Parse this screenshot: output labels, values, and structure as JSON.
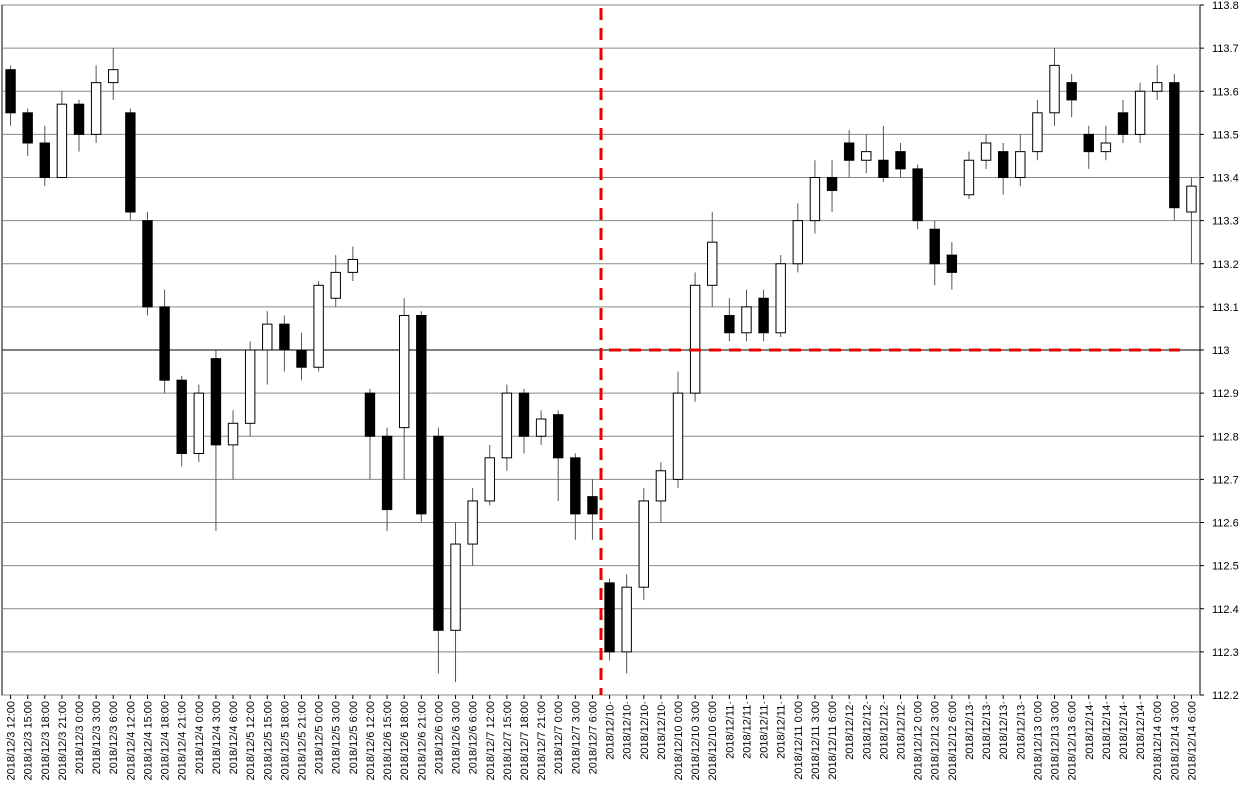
{
  "chart_data": {
    "type": "candlestick",
    "categories": [
      "2018/12/3 12:00",
      "2018/12/3 15:00",
      "2018/12/3 18:00",
      "2018/12/3 21:00",
      "2018/12/3 0:00",
      "2018/12/3 3:00",
      "2018/12/3 6:00",
      "2018/12/4 12:00",
      "2018/12/4 15:00",
      "2018/12/4 18:00",
      "2018/12/4 21:00",
      "2018/12/4 0:00",
      "2018/12/4 3:00",
      "2018/12/4 6:00",
      "2018/12/5 12:00",
      "2018/12/5 15:00",
      "2018/12/5 18:00",
      "2018/12/5 21:00",
      "2018/12/5 0:00",
      "2018/12/5 3:00",
      "2018/12/5 6:00",
      "2018/12/6 12:00",
      "2018/12/6 15:00",
      "2018/12/6 18:00",
      "2018/12/6 21:00",
      "2018/12/6 0:00",
      "2018/12/6 3:00",
      "2018/12/6 6:00",
      "2018/12/7 12:00",
      "2018/12/7 15:00",
      "2018/12/7 18:00",
      "2018/12/7 21:00",
      "2018/12/7 0:00",
      "2018/12/7 3:00",
      "2018/12/7 6:00",
      "2018/12/10·",
      "2018/12/10·",
      "2018/12/10·",
      "2018/12/10·",
      "2018/12/10 0:00",
      "2018/12/10 3:00",
      "2018/12/10 6:00",
      "2018/12/11·",
      "2018/12/11·",
      "2018/12/11·",
      "2018/12/11·",
      "2018/12/11 0:00",
      "2018/12/11 3:00",
      "2018/12/11 6:00",
      "2018/12/12·",
      "2018/12/12·",
      "2018/12/12·",
      "2018/12/12·",
      "2018/12/12 0:00",
      "2018/12/12 3:00",
      "2018/12/12 6:00",
      "2018/12/13·",
      "2018/12/13·",
      "2018/12/13·",
      "2018/12/13·",
      "2018/12/13 0:00",
      "2018/12/13 3:00",
      "2018/12/13 6:00",
      "2018/12/14·",
      "2018/12/14·",
      "2018/12/14·",
      "2018/12/14·",
      "2018/12/14 0:00",
      "2018/12/14 3:00",
      "2018/12/14 6:00"
    ],
    "open": [
      113.65,
      113.55,
      113.48,
      113.4,
      113.57,
      113.5,
      113.62,
      113.55,
      113.3,
      113.1,
      112.93,
      112.76,
      112.98,
      112.78,
      112.83,
      113.0,
      113.06,
      113.0,
      112.96,
      113.12,
      113.18,
      112.9,
      112.8,
      112.82,
      113.08,
      112.8,
      112.35,
      112.55,
      112.65,
      112.75,
      112.9,
      112.8,
      112.85,
      112.75,
      112.66,
      112.46,
      112.3,
      112.45,
      112.65,
      112.7,
      112.9,
      113.15,
      113.08,
      113.04,
      113.12,
      113.04,
      113.2,
      113.3,
      113.4,
      113.48,
      113.44,
      113.44,
      113.46,
      113.42,
      113.28,
      113.22,
      113.36,
      113.44,
      113.46,
      113.4,
      113.46,
      113.55,
      113.62,
      113.5,
      113.46,
      113.55,
      113.5,
      113.6,
      113.62,
      113.32
    ],
    "high": [
      113.66,
      113.56,
      113.52,
      113.6,
      113.58,
      113.66,
      113.7,
      113.56,
      113.32,
      113.14,
      112.94,
      112.92,
      113.0,
      112.86,
      113.02,
      113.09,
      113.08,
      113.04,
      113.16,
      113.22,
      113.24,
      112.91,
      112.82,
      113.12,
      113.09,
      112.82,
      112.6,
      112.68,
      112.78,
      112.92,
      112.91,
      112.86,
      112.86,
      112.76,
      112.7,
      112.47,
      112.48,
      112.68,
      112.74,
      112.95,
      113.18,
      113.32,
      113.12,
      113.14,
      113.14,
      113.22,
      113.34,
      113.44,
      113.44,
      113.51,
      113.5,
      113.52,
      113.48,
      113.43,
      113.3,
      113.25,
      113.46,
      113.5,
      113.48,
      113.5,
      113.58,
      113.7,
      113.64,
      113.52,
      113.52,
      113.58,
      113.62,
      113.66,
      113.64,
      113.4
    ],
    "low": [
      113.52,
      113.45,
      113.38,
      113.4,
      113.46,
      113.48,
      113.58,
      113.3,
      113.08,
      112.9,
      112.73,
      112.74,
      112.58,
      112.7,
      112.8,
      112.92,
      112.95,
      112.93,
      112.95,
      113.1,
      113.16,
      112.7,
      112.58,
      112.7,
      112.6,
      112.25,
      112.23,
      112.5,
      112.64,
      112.72,
      112.76,
      112.78,
      112.65,
      112.56,
      112.56,
      112.28,
      112.25,
      112.42,
      112.6,
      112.68,
      112.88,
      113.1,
      113.02,
      113.02,
      113.02,
      113.03,
      113.18,
      113.27,
      113.32,
      113.4,
      113.41,
      113.39,
      113.4,
      113.28,
      113.15,
      113.14,
      113.35,
      113.42,
      113.36,
      113.38,
      113.44,
      113.52,
      113.54,
      113.42,
      113.44,
      113.48,
      113.48,
      113.58,
      113.3,
      113.2
    ],
    "close": [
      113.55,
      113.48,
      113.4,
      113.57,
      113.5,
      113.62,
      113.65,
      113.32,
      113.1,
      112.93,
      112.76,
      112.9,
      112.78,
      112.83,
      113.0,
      113.06,
      113.0,
      112.96,
      113.15,
      113.18,
      113.21,
      112.8,
      112.63,
      113.08,
      112.62,
      112.35,
      112.55,
      112.65,
      112.75,
      112.9,
      112.8,
      112.84,
      112.75,
      112.62,
      112.62,
      112.3,
      112.45,
      112.65,
      112.72,
      112.9,
      113.15,
      113.25,
      113.04,
      113.1,
      113.04,
      113.2,
      113.3,
      113.4,
      113.37,
      113.44,
      113.46,
      113.4,
      113.42,
      113.3,
      113.2,
      113.18,
      113.44,
      113.48,
      113.4,
      113.46,
      113.55,
      113.66,
      113.58,
      113.46,
      113.48,
      113.5,
      113.6,
      113.62,
      113.33,
      113.38
    ],
    "ylim": [
      112.2,
      113.8
    ],
    "yticks": [
      112.2,
      112.3,
      112.4,
      112.5,
      112.6,
      112.7,
      112.8,
      112.9,
      113,
      113.1,
      113.2,
      113.3,
      113.4,
      113.5,
      113.6,
      113.7,
      113.8
    ],
    "grid": true,
    "hline": 113,
    "vline_before": 35
  }
}
